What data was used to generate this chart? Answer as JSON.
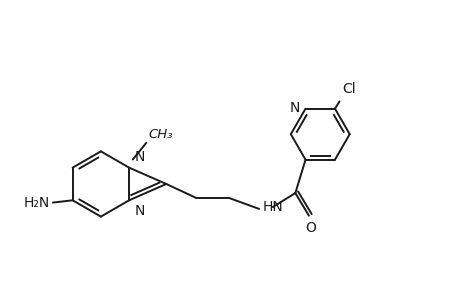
{
  "background_color": "#ffffff",
  "line_color": "#1a1a1a",
  "line_width": 1.4,
  "font_size": 10,
  "figsize": [
    4.6,
    3.0
  ],
  "dpi": 100,
  "xlim": [
    0,
    10
  ],
  "ylim": [
    0,
    6.5
  ]
}
